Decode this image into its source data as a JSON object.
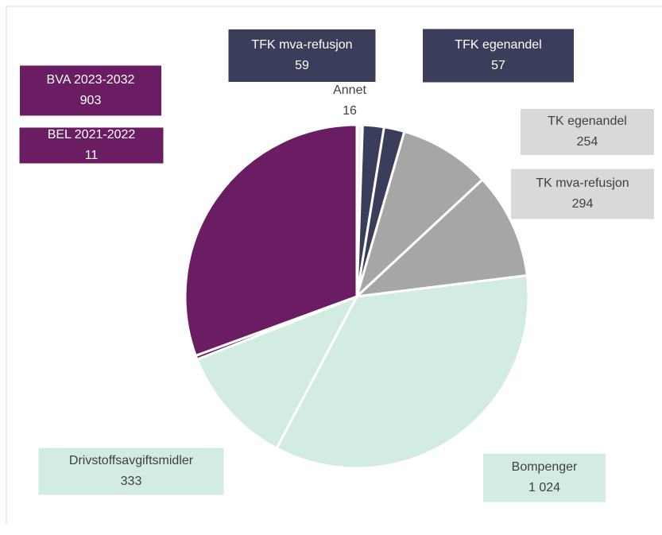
{
  "chart_data": {
    "type": "pie",
    "categories": [
      "Annet",
      "TFK mva-refusjon",
      "TFK egenandel",
      "TK egenandel",
      "TK mva-refusjon",
      "Bompenger",
      "Drivstoffsavgiftsmidler",
      "BEL 2021-2022",
      "BVA 2023-2032"
    ],
    "values": [
      16,
      59,
      57,
      254,
      294,
      1024,
      333,
      11,
      903
    ],
    "value_labels": [
      "16",
      "59",
      "57",
      "254",
      "294",
      "1 024",
      "333",
      "11",
      "903"
    ],
    "colors": [
      "#f2f2f2",
      "#3b3e5b",
      "#3b3e5b",
      "#a6a6a6",
      "#a6a6a6",
      "#d3ece2",
      "#d3ece2",
      "#6b1d63",
      "#6b1d63"
    ]
  }
}
